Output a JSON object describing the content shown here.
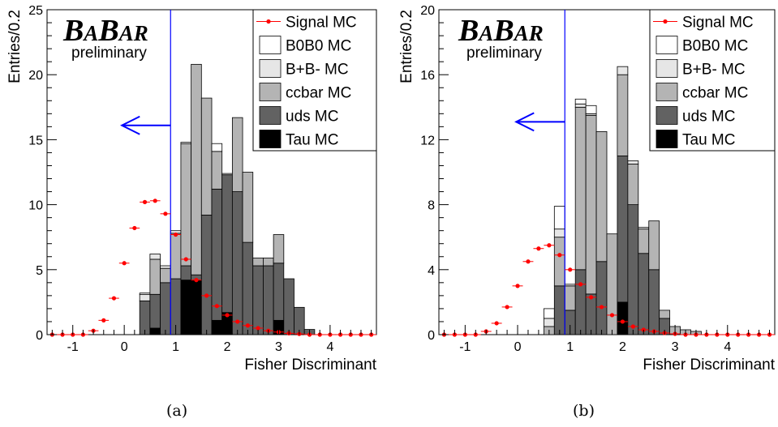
{
  "figure": {
    "captions": [
      "(a)",
      "(b)"
    ]
  },
  "logo": {
    "text_b1": "B",
    "text_a1": "A",
    "text_b2": "B",
    "text_ar": "AR",
    "sub": "preliminary"
  },
  "legend": {
    "signal": "Signal MC",
    "b0b0": "B0B0 MC",
    "bpbm": "B+B- MC",
    "ccbar": "ccbar  MC",
    "uds": "uds MC",
    "tau": "Tau MC"
  },
  "colors": {
    "b0b0": "#ffffff",
    "bpbm": "#e6e6e6",
    "ccbar": "#b4b4b4",
    "uds": "#626262",
    "tau": "#000000",
    "signal": "#ff0000",
    "cut": "#0000ff"
  },
  "chart_data": [
    {
      "type": "bar",
      "stacked": true,
      "xlabel": "Fisher Discriminant",
      "ylabel": "Entries/0.2",
      "xlim": [
        -1.5,
        4.9
      ],
      "ylim": [
        0,
        25
      ],
      "xticks": [
        -1,
        0,
        1,
        2,
        3,
        4
      ],
      "yticks": [
        0,
        5,
        10,
        15,
        20,
        25
      ],
      "bin_width": 0.2,
      "bin_lefts": [
        0.3,
        0.5,
        0.7,
        0.9,
        1.1,
        1.3,
        1.5,
        1.7,
        1.9,
        2.1,
        2.3,
        2.5,
        2.7,
        2.9,
        3.1,
        3.3,
        3.5
      ],
      "series": [
        {
          "name": "Tau MC",
          "values": [
            0,
            0.5,
            0,
            0,
            4.2,
            4.2,
            0,
            1.1,
            1.7,
            0,
            0,
            0,
            0,
            1.1,
            0,
            0,
            0
          ]
        },
        {
          "name": "uds MC",
          "values": [
            2.6,
            2.6,
            4.0,
            4.3,
            1.1,
            0.4,
            9.2,
            10.1,
            10.6,
            11.0,
            7.1,
            5.3,
            5.3,
            4.4,
            4.3,
            2.1,
            0.4
          ]
        },
        {
          "name": "ccbar  MC",
          "values": [
            0,
            2.7,
            1.1,
            3.5,
            9.4,
            16.2,
            9.0,
            2.9,
            0,
            5.7,
            5.4,
            0.6,
            0.6,
            2.2,
            0,
            0,
            0
          ]
        },
        {
          "name": "B+B- MC",
          "values": [
            0.5,
            0.4,
            0.2,
            0.2,
            0,
            0,
            0,
            0,
            0.1,
            0,
            0,
            0,
            0,
            0,
            0,
            0,
            0
          ]
        },
        {
          "name": "B0B0 MC",
          "values": [
            0.1,
            0,
            0,
            0,
            0.1,
            0,
            0,
            0.6,
            0,
            0,
            0,
            0,
            0,
            0,
            0,
            0,
            0
          ]
        }
      ],
      "signal": {
        "name": "Signal MC",
        "x": [
          -1.4,
          -1.2,
          -1.0,
          -0.8,
          -0.6,
          -0.4,
          -0.2,
          0.0,
          0.2,
          0.4,
          0.6,
          0.8,
          1.0,
          1.2,
          1.4,
          1.6,
          1.8,
          2.0,
          2.2,
          2.4,
          2.6,
          2.8,
          3.0,
          3.2,
          3.4,
          3.6,
          3.8,
          4.0,
          4.2,
          4.4,
          4.6,
          4.8
        ],
        "y": [
          0,
          0,
          0,
          0,
          0.3,
          1.1,
          2.8,
          5.5,
          8.2,
          10.2,
          10.3,
          9.3,
          7.7,
          5.8,
          4.2,
          3.0,
          2.2,
          1.5,
          1.0,
          0.7,
          0.5,
          0.3,
          0.2,
          0.1,
          0.05,
          0,
          0,
          0,
          0,
          0,
          0,
          0
        ]
      },
      "cut": {
        "x": 0.9,
        "arrow_y": 16.1
      },
      "legend_placement": "top-right",
      "grid": false
    },
    {
      "type": "bar",
      "stacked": true,
      "xlabel": "Fisher Discriminant",
      "ylabel": "Entries/0.2",
      "xlim": [
        -1.5,
        4.9
      ],
      "ylim": [
        0,
        20
      ],
      "xticks": [
        -1,
        0,
        1,
        2,
        3,
        4
      ],
      "yticks": [
        0,
        4,
        8,
        12,
        16,
        20
      ],
      "bin_width": 0.2,
      "bin_lefts": [
        0.5,
        0.7,
        0.9,
        1.1,
        1.3,
        1.5,
        1.7,
        1.9,
        2.1,
        2.3,
        2.5,
        2.7,
        2.9,
        3.1,
        3.3,
        3.5
      ],
      "series": [
        {
          "name": "Tau MC",
          "values": [
            0,
            0,
            0,
            0,
            0,
            0,
            0,
            2.0,
            0,
            0,
            0,
            0,
            0,
            0,
            0,
            0
          ]
        },
        {
          "name": "uds MC",
          "values": [
            0,
            3.0,
            1.5,
            4.0,
            2.5,
            4.5,
            0,
            9.0,
            8.0,
            5.0,
            4.0,
            1.0,
            0,
            0,
            0,
            0
          ]
        },
        {
          "name": "ccbar  MC",
          "values": [
            0.5,
            3.0,
            1.5,
            10.0,
            11.0,
            8.0,
            6.2,
            5.0,
            2.5,
            1.5,
            3.0,
            0.5,
            0.5,
            0.3,
            0.2,
            0
          ]
        },
        {
          "name": "B+B- MC",
          "values": [
            0.5,
            0.5,
            0.1,
            0.2,
            0.1,
            0,
            0,
            0.5,
            0.2,
            0.1,
            0,
            0,
            0,
            0,
            0,
            0
          ]
        },
        {
          "name": "B0B0 MC",
          "values": [
            0.6,
            1.4,
            0,
            0.3,
            0.5,
            0,
            0,
            0,
            0,
            0,
            0,
            0,
            0,
            0,
            0,
            0
          ]
        }
      ],
      "signal": {
        "name": "Signal MC",
        "x": [
          -1.4,
          -1.2,
          -1.0,
          -0.8,
          -0.6,
          -0.4,
          -0.2,
          0.0,
          0.2,
          0.4,
          0.6,
          0.8,
          1.0,
          1.2,
          1.4,
          1.6,
          1.8,
          2.0,
          2.2,
          2.4,
          2.6,
          2.8,
          3.0,
          3.2,
          3.4,
          3.6,
          3.8,
          4.0,
          4.2,
          4.4,
          4.6,
          4.8
        ],
        "y": [
          0,
          0,
          0,
          0,
          0.2,
          0.7,
          1.7,
          3.0,
          4.5,
          5.3,
          5.5,
          4.9,
          4.0,
          3.1,
          2.3,
          1.7,
          1.2,
          0.8,
          0.5,
          0.3,
          0.2,
          0.1,
          0.05,
          0,
          0,
          0,
          0,
          0,
          0,
          0,
          0,
          0
        ]
      },
      "cut": {
        "x": 0.9,
        "arrow_y": 13.1
      },
      "legend_placement": "top-right",
      "grid": false
    }
  ]
}
